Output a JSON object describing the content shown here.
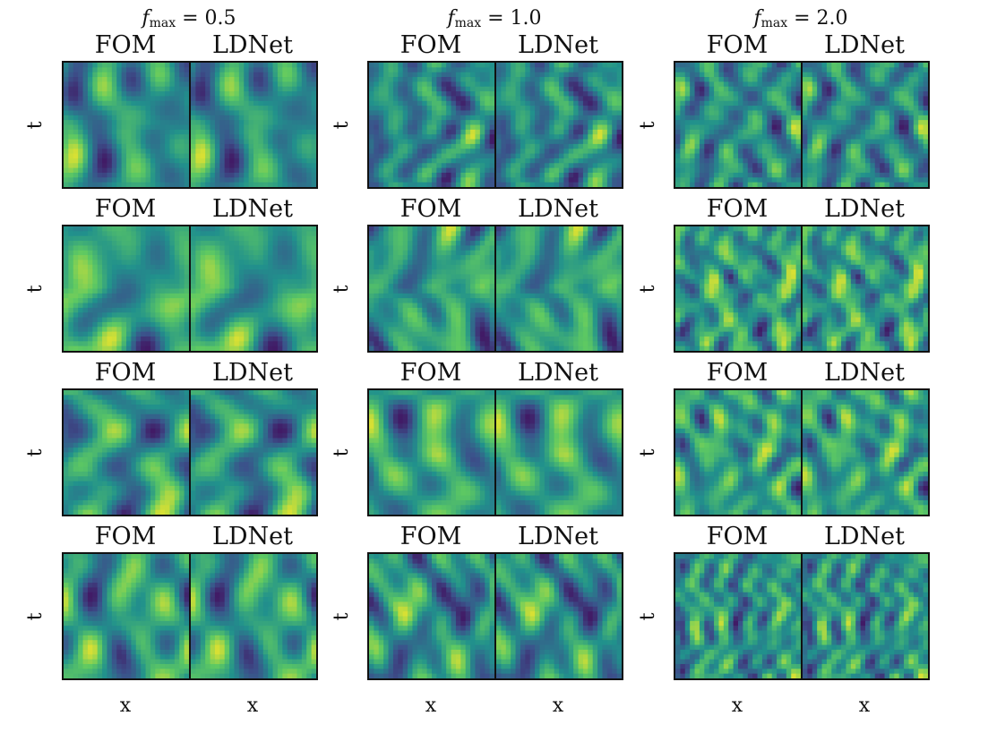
{
  "chart_data": {
    "type": "heatmap",
    "colormap": "viridis",
    "colormap_stops": [
      "#440154",
      "#3b528b",
      "#21918c",
      "#5ec962",
      "#fde725"
    ],
    "columns": [
      {
        "title_symbol": "f",
        "title_sub": "max",
        "title_rest": " = 0.5",
        "f_max": 0.5
      },
      {
        "title_symbol": "f",
        "title_sub": "max",
        "title_rest": " = 1.0",
        "f_max": 1.0
      },
      {
        "title_symbol": "f",
        "title_sub": "max",
        "title_rest": " = 2.0",
        "f_max": 2.0
      }
    ],
    "rows": 4,
    "panel_labels": [
      "FOM",
      "LDNet"
    ],
    "xlabel": "x",
    "ylabel": "t"
  }
}
